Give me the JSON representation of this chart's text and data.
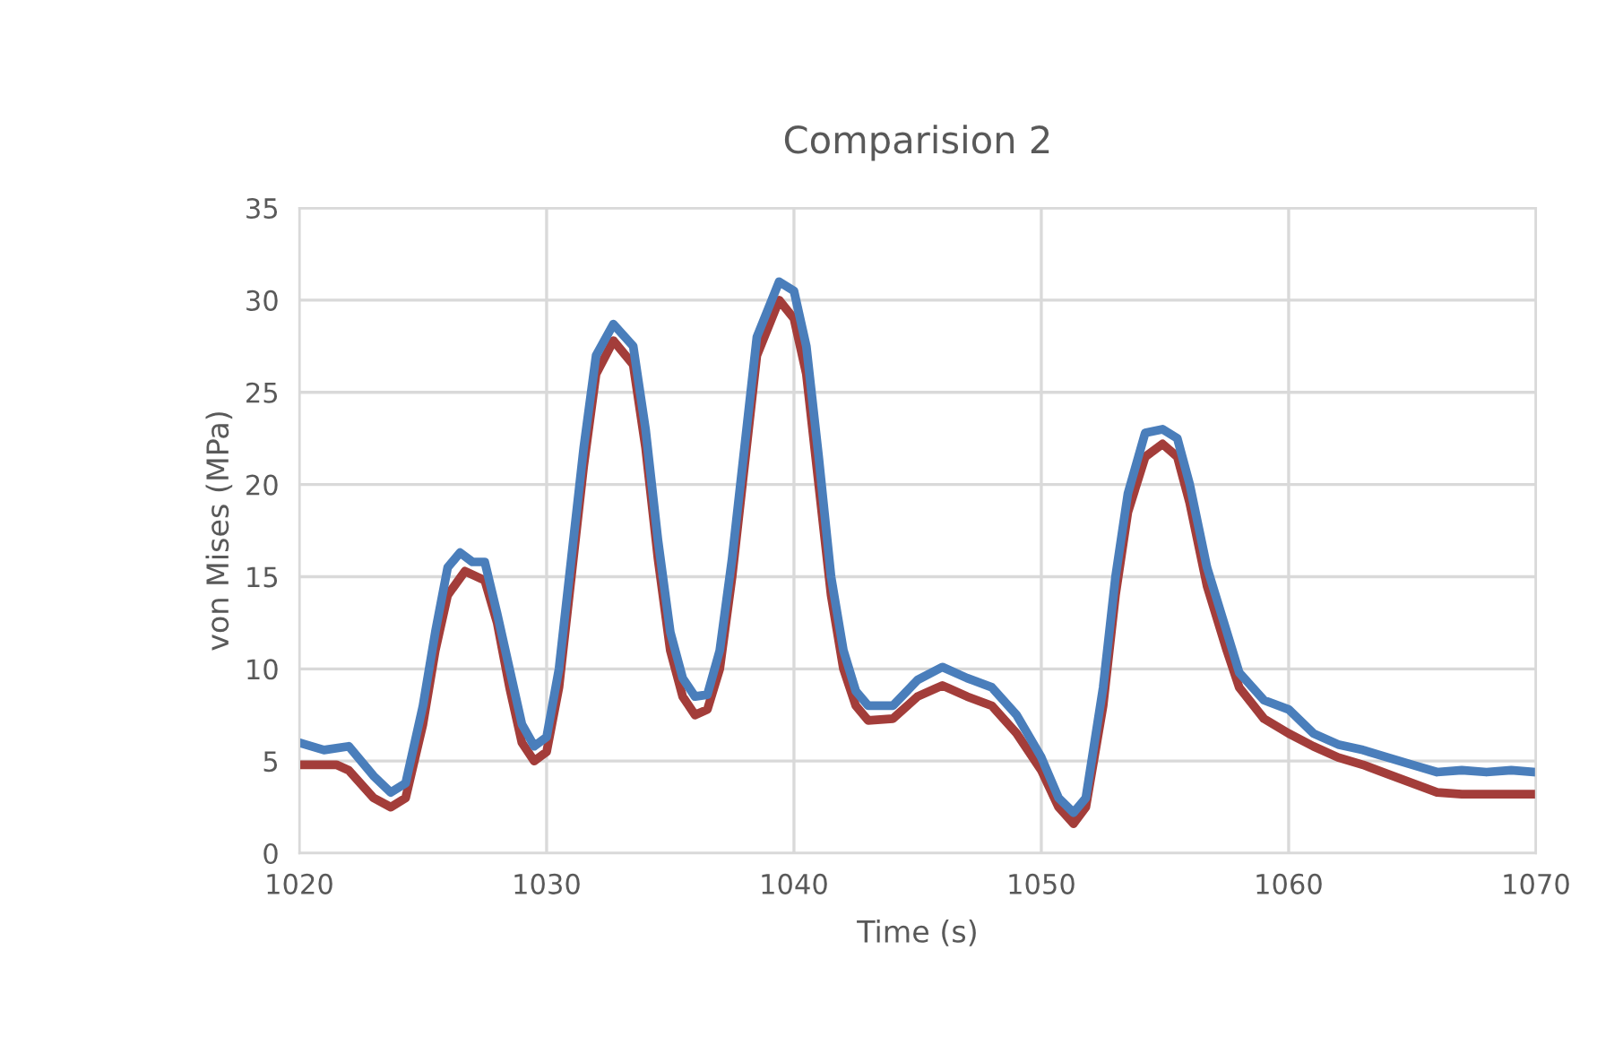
{
  "chart_data": {
    "type": "line",
    "title": "Comparision 2",
    "xlabel": "Time (s)",
    "ylabel": "von Mises (MPa)",
    "xlim": [
      1020,
      1070
    ],
    "xticks": [
      1020,
      1030,
      1040,
      1050,
      1060,
      1070
    ],
    "ylim": [
      0,
      35
    ],
    "yticks": [
      0,
      5,
      10,
      15,
      20,
      25,
      30,
      35
    ],
    "grid": true,
    "legend": false,
    "marker": "none",
    "line_style": "solid",
    "series": [
      {
        "color": "#a33d3a",
        "x": [
          1020,
          1021.5,
          1022,
          1023,
          1023.7,
          1024.3,
          1025,
          1025.5,
          1026,
          1026.7,
          1027.5,
          1028,
          1028.5,
          1029,
          1029.5,
          1030,
          1030.5,
          1031,
          1031.5,
          1032,
          1032.7,
          1033.5,
          1034,
          1034.5,
          1035,
          1035.5,
          1036,
          1036.5,
          1037,
          1037.5,
          1038,
          1038.5,
          1039.4,
          1040,
          1040.5,
          1041,
          1041.5,
          1042,
          1042.5,
          1043,
          1044,
          1045,
          1046,
          1047,
          1048,
          1049,
          1050,
          1050.7,
          1051.3,
          1051.8,
          1052.5,
          1053,
          1053.5,
          1054.2,
          1054.9,
          1055.5,
          1056,
          1056.7,
          1057.5,
          1058,
          1059,
          1060,
          1061,
          1062,
          1063,
          1064,
          1065,
          1066,
          1067,
          1070
        ],
        "values": [
          4.8,
          4.8,
          4.5,
          3.0,
          2.5,
          3.0,
          7,
          11,
          14,
          15.3,
          14.8,
          12.5,
          9,
          6,
          5.0,
          5.5,
          9,
          15,
          21,
          26,
          27.8,
          26.5,
          22,
          16,
          11,
          8.5,
          7.5,
          7.8,
          10,
          15,
          21,
          27,
          30,
          29,
          26,
          20,
          14,
          10,
          8,
          7.2,
          7.3,
          8.5,
          9.1,
          8.5,
          8,
          6.5,
          4.5,
          2.5,
          1.6,
          2.5,
          8,
          14,
          18.5,
          21.5,
          22.2,
          21.5,
          19,
          14.5,
          11,
          9,
          7.3,
          6.5,
          5.8,
          5.2,
          4.8,
          4.3,
          3.8,
          3.3,
          3.2,
          3.2
        ]
      },
      {
        "color": "#4a7ebb",
        "x": [
          1020,
          1021,
          1022,
          1023,
          1023.7,
          1024.3,
          1025,
          1025.5,
          1026,
          1026.5,
          1027,
          1027.5,
          1028,
          1028.5,
          1029,
          1029.5,
          1030,
          1030.5,
          1031,
          1031.5,
          1032,
          1032.7,
          1033.5,
          1034,
          1034.5,
          1035,
          1035.5,
          1036,
          1036.5,
          1037,
          1037.5,
          1038,
          1038.5,
          1039.4,
          1040,
          1040.5,
          1041,
          1041.5,
          1042,
          1042.5,
          1043,
          1044,
          1045,
          1046,
          1047,
          1048,
          1049,
          1050,
          1050.7,
          1051.3,
          1051.8,
          1052.5,
          1053,
          1053.5,
          1054.2,
          1054.9,
          1055.5,
          1056,
          1056.7,
          1057.5,
          1058,
          1059,
          1060,
          1061,
          1062,
          1063,
          1064,
          1065,
          1066,
          1067,
          1068,
          1069,
          1070
        ],
        "values": [
          6,
          5.6,
          5.8,
          4.2,
          3.3,
          3.8,
          8,
          12,
          15.5,
          16.3,
          15.8,
          15.8,
          13,
          10,
          7,
          5.8,
          6.3,
          10,
          16,
          22,
          27,
          28.7,
          27.5,
          23,
          17,
          12,
          9.5,
          8.5,
          8.6,
          11,
          16,
          22,
          28,
          31,
          30.5,
          27.5,
          21.5,
          15,
          11,
          8.8,
          8,
          8.0,
          9.4,
          10.1,
          9.5,
          9,
          7.5,
          5.2,
          3,
          2.2,
          3,
          9,
          15,
          19.5,
          22.8,
          23,
          22.5,
          20,
          15.5,
          12,
          9.8,
          8.3,
          7.8,
          6.5,
          5.9,
          5.6,
          5.2,
          4.8,
          4.4,
          4.5,
          4.4,
          4.5,
          4.4
        ]
      }
    ]
  }
}
